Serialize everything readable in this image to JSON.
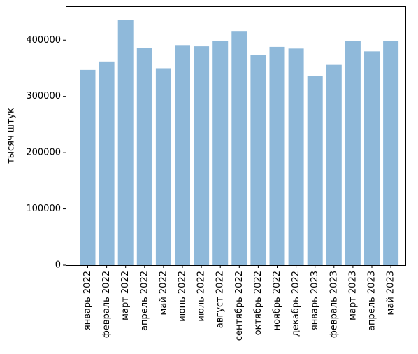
{
  "chart_data": {
    "type": "bar",
    "title": "",
    "xlabel": "",
    "ylabel": "тысяч штук",
    "categories": [
      "январь 2022",
      "февраль 2022",
      "март 2022",
      "апрель 2022",
      "май 2022",
      "июнь 2022",
      "июль 2022",
      "август 2022",
      "сентябрь 2022",
      "октябрь 2022",
      "ноябрь 2022",
      "декабрь 2022",
      "январь 2023",
      "февраль 2023",
      "март 2023",
      "апрель 2023",
      "май 2023"
    ],
    "values": [
      347000,
      362000,
      436000,
      386000,
      350000,
      390000,
      389000,
      398000,
      415000,
      373000,
      388000,
      385000,
      336000,
      356000,
      398000,
      380000,
      399000
    ],
    "ylim": [
      0,
      460000
    ],
    "yticks": [
      0,
      100000,
      200000,
      300000,
      400000
    ],
    "ytick_labels": [
      "0",
      "100000",
      "200000",
      "300000",
      "400000"
    ],
    "grid": false,
    "bar_color": "#8fb9da",
    "axis_color": "#000000"
  }
}
